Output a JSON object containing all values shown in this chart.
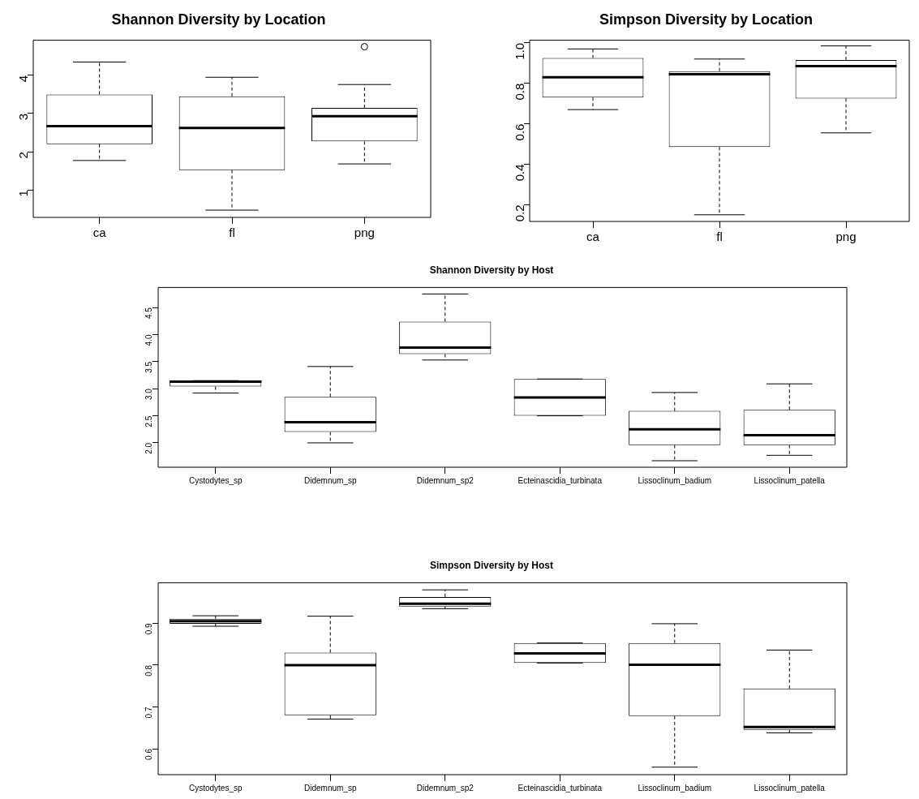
{
  "chart_data": [
    {
      "type": "box",
      "title": "Shannon Diversity by Location",
      "categories": [
        "ca",
        "fl",
        "png"
      ],
      "ylim": [
        0.28,
        4.92
      ],
      "yticks": [
        1,
        2,
        3,
        4
      ],
      "boxes": [
        {
          "low": 1.77,
          "q1": 2.2,
          "median": 2.67,
          "q3": 3.5,
          "high": 4.35
        },
        {
          "low": 0.47,
          "q1": 1.52,
          "median": 2.62,
          "q3": 3.45,
          "high": 3.95
        },
        {
          "low": 1.68,
          "q1": 2.27,
          "median": 2.93,
          "q3": 3.15,
          "high": 3.76,
          "outliers": [
            4.75
          ]
        }
      ]
    },
    {
      "type": "box",
      "title": "Simpson Diversity by Location",
      "categories": [
        "ca",
        "fl",
        "png"
      ],
      "ylim": [
        0.117,
        1.013
      ],
      "yticks": [
        {
          "value": 0.2,
          "label": "0.2"
        },
        {
          "value": 0.4,
          "label": "0.4"
        },
        {
          "value": 0.6,
          "label": "0.6"
        },
        {
          "value": 0.8,
          "label": "0.8"
        },
        {
          "value": 1,
          "label": "1.0"
        }
      ],
      "boxes": [
        {
          "low": 0.67,
          "q1": 0.73,
          "median": 0.83,
          "q3": 0.925,
          "high": 0.97
        },
        {
          "low": 0.15,
          "q1": 0.485,
          "median": 0.845,
          "q3": 0.86,
          "high": 0.92
        },
        {
          "low": 0.555,
          "q1": 0.725,
          "median": 0.885,
          "q3": 0.915,
          "high": 0.985
        }
      ]
    },
    {
      "type": "box",
      "title": "Shannon Diversity by Host",
      "categories": [
        "Cystodytes_sp",
        "Didemnum_sp",
        "Didemnum_sp2",
        "Ecteinascidia_turbinata",
        "Lissoclinum_badium",
        "Lissoclinum_patella"
      ],
      "ylim": [
        1.55,
        4.87
      ],
      "yticks": [
        {
          "value": 2,
          "label": "2.0"
        },
        {
          "value": 2.5,
          "label": "2.5"
        },
        {
          "value": 3,
          "label": "3.0"
        },
        {
          "value": 3.5,
          "label": "3.5"
        },
        {
          "value": 4,
          "label": "4.0"
        },
        {
          "value": 4.5,
          "label": "4.5"
        }
      ],
      "boxes": [
        {
          "low": 2.92,
          "q1": 3.04,
          "median": 3.13,
          "q3": 3.15,
          "high": 3.15
        },
        {
          "low": 2.0,
          "q1": 2.2,
          "median": 2.38,
          "q3": 2.85,
          "high": 3.41
        },
        {
          "low": 3.53,
          "q1": 3.64,
          "median": 3.76,
          "q3": 4.24,
          "high": 4.75
        },
        {
          "low": 2.5,
          "q1": 2.5,
          "median": 2.84,
          "q3": 3.18,
          "high": 3.18
        },
        {
          "low": 1.67,
          "q1": 1.96,
          "median": 2.25,
          "q3": 2.59,
          "high": 2.93
        },
        {
          "low": 1.77,
          "q1": 1.96,
          "median": 2.14,
          "q3": 2.61,
          "high": 3.09
        }
      ]
    },
    {
      "type": "box",
      "title": "Simpson Diversity by Host",
      "categories": [
        "Cystodytes_sp",
        "Didemnum_sp",
        "Didemnum_sp2",
        "Ecteinascidia_turbinata",
        "Lissoclinum_badium",
        "Lissoclinum_patella"
      ],
      "ylim": [
        0.538,
        0.997
      ],
      "yticks": [
        0.6,
        0.7,
        0.8,
        0.9
      ],
      "boxes": [
        {
          "low": 0.893,
          "q1": 0.899,
          "median": 0.905,
          "q3": 0.911,
          "high": 0.918
        },
        {
          "low": 0.671,
          "q1": 0.68,
          "median": 0.8,
          "q3": 0.83,
          "high": 0.917
        },
        {
          "low": 0.935,
          "q1": 0.94,
          "median": 0.947,
          "q3": 0.963,
          "high": 0.98
        },
        {
          "low": 0.805,
          "q1": 0.805,
          "median": 0.828,
          "q3": 0.853,
          "high": 0.853
        },
        {
          "low": 0.556,
          "q1": 0.678,
          "median": 0.801,
          "q3": 0.853,
          "high": 0.899
        },
        {
          "low": 0.638,
          "q1": 0.645,
          "median": 0.652,
          "q3": 0.744,
          "high": 0.836
        }
      ]
    }
  ]
}
